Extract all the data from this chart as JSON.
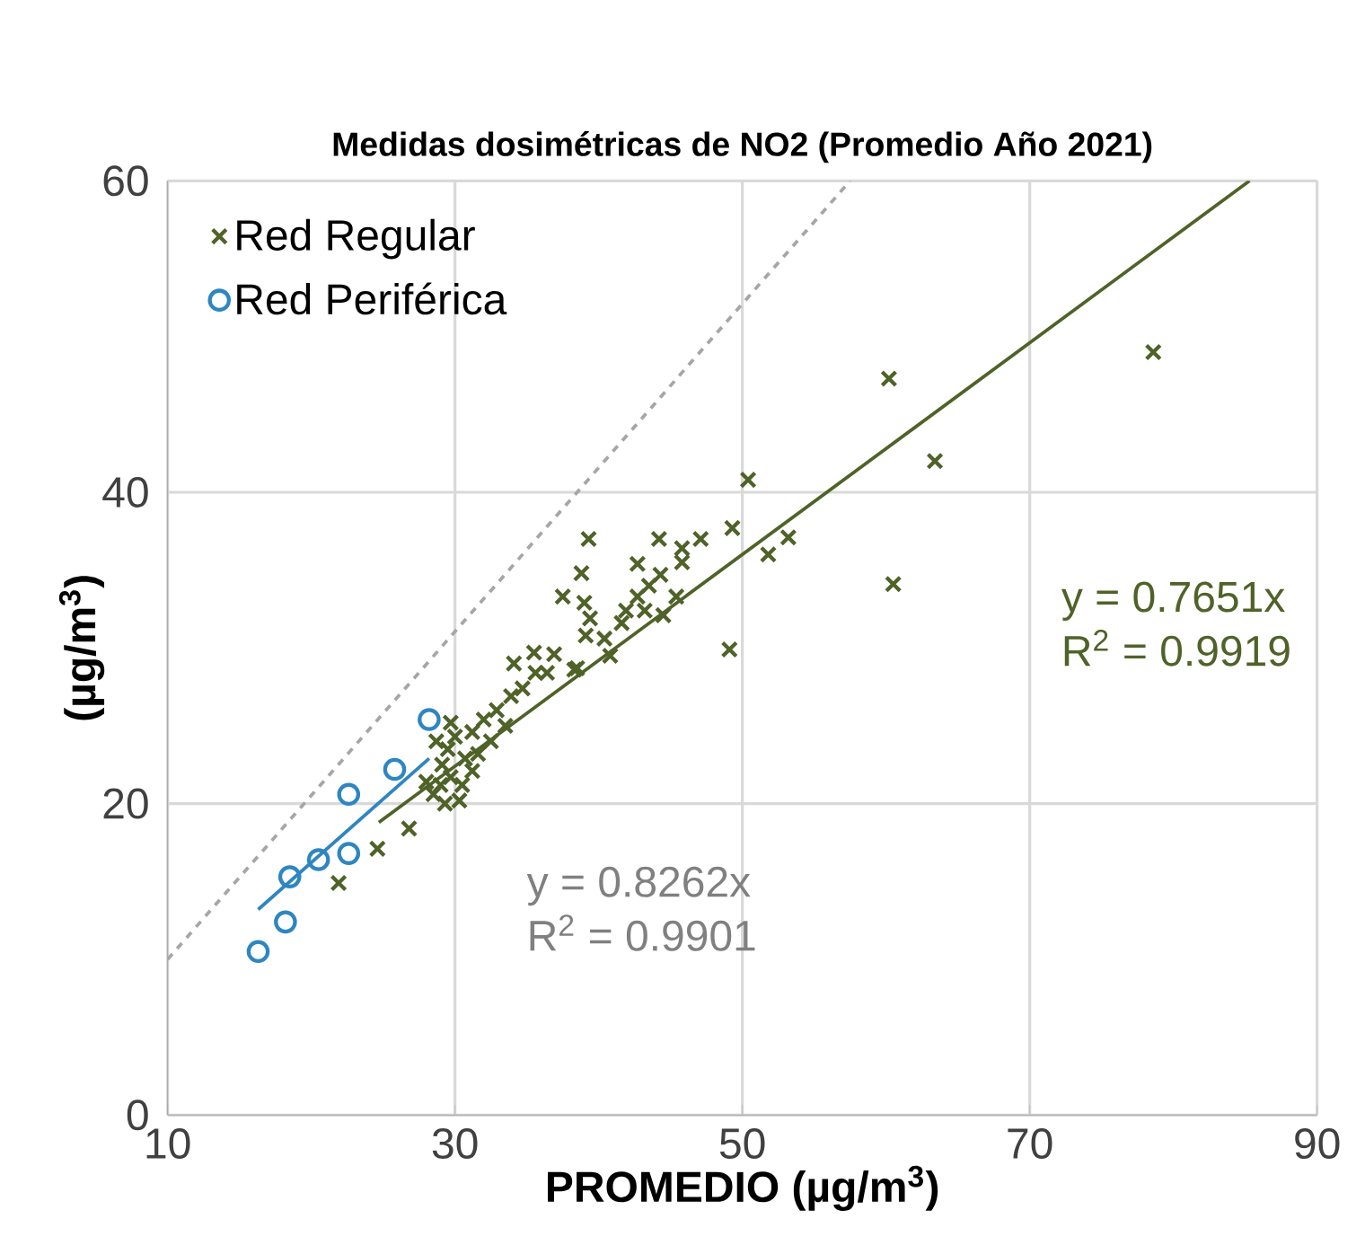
{
  "chart_data": {
    "type": "scatter",
    "title": "**Medidas dosimétricas de NO2 (Promedio Año 2021)**",
    "xlabel": "**PROMEDIO (µg/m$^{3}$)**",
    "ylabel": "**(µg/m$^{3}$)**",
    "xlim": [
      10,
      90
    ],
    "ylim": [
      0,
      60
    ],
    "xticks": [
      10,
      30,
      50,
      70,
      90
    ],
    "yticks": [
      0,
      20,
      40,
      60
    ],
    "grid": true,
    "legend": "top left",
    "series": [
      {
        "name": "Red Regular",
        "marker": "cross",
        "color": "#4f6228",
        "x": [
          21.9,
          24.6,
          26.8,
          29.1,
          29.5,
          29.7,
          30.0,
          29.0,
          30.5,
          30.7,
          31.2,
          31.6,
          28.7,
          29.7,
          30.3,
          29.3,
          28.5,
          28.0,
          31.2,
          32.0,
          33.5,
          32.5,
          32.9,
          33.9,
          34.7,
          35.6,
          34.1,
          35.5,
          36.9,
          36.4,
          38.3,
          38.5,
          39.3,
          38.8,
          37.5,
          39.0,
          39.4,
          39.1,
          40.8,
          42.7,
          44.2,
          45.8,
          47.1,
          45.8,
          44.3,
          43.5,
          42.7,
          41.9,
          45.4,
          44.5,
          43.2,
          41.6,
          40.4,
          49.1,
          50.4,
          51.8,
          53.2,
          49.3,
          60.2,
          63.4,
          78.6,
          60.5
        ],
        "values": [
          14.9,
          17.1,
          18.4,
          22.5,
          23.5,
          21.7,
          24.3,
          21.2,
          21.2,
          22.9,
          22.1,
          23.2,
          24.0,
          25.2,
          20.2,
          20.0,
          20.6,
          21.4,
          24.6,
          25.4,
          25.0,
          24.0,
          26.0,
          26.9,
          27.4,
          28.4,
          29.0,
          29.7,
          29.6,
          28.4,
          28.6,
          28.7,
          37.0,
          34.8,
          33.3,
          32.9,
          31.9,
          30.8,
          29.5,
          35.4,
          37.0,
          36.4,
          37.0,
          35.5,
          34.7,
          34.0,
          33.3,
          32.4,
          33.3,
          32.1,
          32.4,
          31.6,
          30.6,
          29.9,
          40.8,
          36.0,
          37.1,
          37.7,
          47.3,
          42.0,
          49.0,
          34.1
        ]
      },
      {
        "name": "Red Periférica",
        "marker": "circle",
        "color": "#2e86c1",
        "x": [
          16.3,
          18.2,
          18.5,
          20.5,
          22.6,
          22.6,
          25.8,
          28.2
        ],
        "values": [
          10.5,
          12.4,
          15.3,
          16.4,
          20.6,
          16.8,
          22.2,
          25.4
        ]
      },
      {
        "type": "line",
        "color": "#4f6228",
        "line_style": "solid",
        "x": [
          24.7,
          85.3
        ],
        "values": [
          18.8,
          60
        ]
      },
      {
        "type": "line",
        "color": "#2e86c1",
        "line_style": "solid",
        "x": [
          16.3,
          28.2
        ],
        "values": [
          13.2,
          22.9
        ]
      },
      {
        "type": "line",
        "color": "#a6a6a6",
        "line_style": "dashed",
        "x": [
          10,
          57.5
        ],
        "values": [
          10,
          60
        ]
      }
    ],
    "annotations": [
      "y = 0.7651x",
      "R$^{2}$ = 0.9919",
      "y = 0.8262x",
      "R$^{2}$ = 0.9901"
    ]
  }
}
